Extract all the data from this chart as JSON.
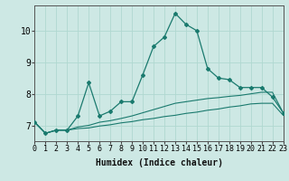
{
  "title": "",
  "xlabel": "Humidex (Indice chaleur)",
  "ylabel": "",
  "background_color": "#cde8e4",
  "grid_color": "#b0d8d0",
  "line_color": "#1a7a6e",
  "x": [
    0,
    1,
    2,
    3,
    4,
    5,
    6,
    7,
    8,
    9,
    10,
    11,
    12,
    13,
    14,
    15,
    16,
    17,
    18,
    19,
    20,
    21,
    22,
    23
  ],
  "y_main": [
    7.1,
    6.75,
    6.85,
    6.85,
    7.3,
    8.35,
    7.3,
    7.45,
    7.75,
    7.75,
    8.6,
    9.5,
    9.8,
    10.55,
    10.2,
    10.0,
    8.8,
    8.5,
    8.45,
    8.2,
    8.2,
    8.2,
    7.9,
    7.4
  ],
  "y_lower1": [
    7.1,
    6.75,
    6.85,
    6.85,
    6.95,
    7.0,
    7.1,
    7.15,
    7.22,
    7.3,
    7.4,
    7.5,
    7.6,
    7.7,
    7.75,
    7.8,
    7.85,
    7.88,
    7.92,
    7.95,
    8.0,
    8.05,
    8.05,
    7.4
  ],
  "y_lower2": [
    7.1,
    6.75,
    6.85,
    6.85,
    6.9,
    6.92,
    6.98,
    7.02,
    7.08,
    7.12,
    7.18,
    7.22,
    7.28,
    7.32,
    7.38,
    7.42,
    7.48,
    7.52,
    7.58,
    7.62,
    7.68,
    7.7,
    7.7,
    7.32
  ],
  "xlim": [
    0,
    23
  ],
  "ylim": [
    6.5,
    10.8
  ],
  "yticks": [
    7,
    8,
    9,
    10
  ],
  "xticks": [
    0,
    1,
    2,
    3,
    4,
    5,
    6,
    7,
    8,
    9,
    10,
    11,
    12,
    13,
    14,
    15,
    16,
    17,
    18,
    19,
    20,
    21,
    22,
    23
  ],
  "xlabel_fontsize": 7,
  "tick_fontsize": 6,
  "ytick_fontsize": 7
}
